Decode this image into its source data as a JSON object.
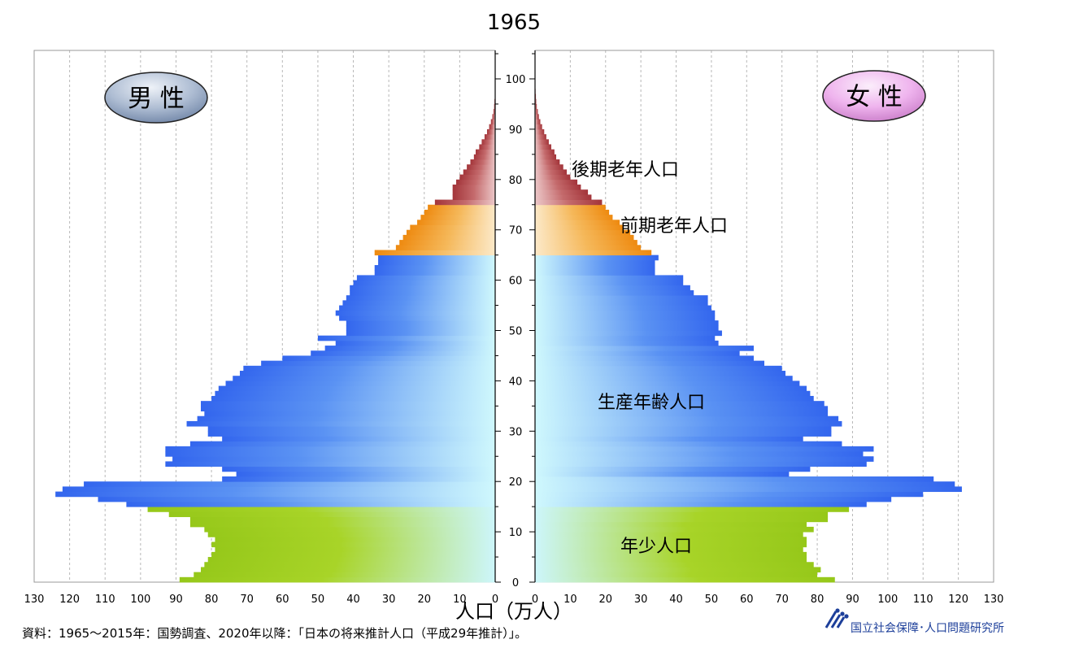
{
  "chart_data": {
    "type": "bar",
    "orientation": "horizontal",
    "subtype": "population-pyramid",
    "title": "1965",
    "xlabel": "人口（万人）",
    "unit": "万人",
    "xlim": [
      0,
      130
    ],
    "xticks": [
      0,
      10,
      20,
      30,
      40,
      50,
      60,
      70,
      80,
      90,
      100,
      110,
      120,
      130
    ],
    "ylim": [
      0,
      105
    ],
    "yticks": [
      0,
      10,
      20,
      30,
      40,
      50,
      60,
      70,
      80,
      90,
      100
    ],
    "grid": true,
    "male_label": "男 性",
    "female_label": "女 性",
    "age_groups": [
      {
        "name": "年少人口",
        "from": 0,
        "to": 14,
        "color": "#9ccc1e"
      },
      {
        "name": "生産年齢人口",
        "from": 15,
        "to": 64,
        "color": "#3a6ef0"
      },
      {
        "name": "前期老年人口",
        "from": 65,
        "to": 74,
        "color": "#f29418"
      },
      {
        "name": "後期老年人口",
        "from": 75,
        "to": 105,
        "color": "#a6383c"
      }
    ],
    "series": [
      {
        "name": "男 性",
        "values": [
          89,
          85,
          83,
          82,
          81,
          80,
          79,
          80,
          79,
          81,
          82,
          86,
          86,
          92,
          98,
          104,
          112,
          124,
          122,
          116,
          77,
          73,
          77,
          93,
          91,
          93,
          93,
          86,
          77,
          81,
          81,
          87,
          84,
          82,
          83,
          83,
          80,
          79,
          78,
          76,
          74,
          72,
          71,
          66,
          60,
          52,
          48,
          45,
          50,
          42,
          42,
          42,
          44,
          45,
          44,
          43,
          42,
          41,
          41,
          40,
          39,
          34,
          34,
          33,
          33,
          34,
          28,
          27,
          26,
          25,
          24,
          22,
          21,
          20,
          19,
          17,
          12,
          12,
          12,
          11,
          10,
          9,
          8,
          7,
          6,
          5.5,
          4.5,
          3.8,
          3.0,
          2.3,
          1.7,
          1.2,
          0.8,
          0.5,
          0.3,
          0.2,
          0.1,
          0.05,
          0.03,
          0.02,
          0.01,
          0,
          0,
          0,
          0,
          0
        ]
      },
      {
        "name": "女 性",
        "values": [
          85,
          80,
          81,
          79,
          77,
          77,
          76,
          77,
          77,
          76,
          79,
          77,
          83,
          83,
          89,
          94,
          101,
          110,
          121,
          119,
          113,
          72,
          78,
          94,
          96,
          93,
          96,
          87,
          76,
          84,
          84,
          87,
          86,
          83,
          83,
          82,
          79,
          78,
          77,
          75,
          73,
          71,
          70,
          65,
          62,
          58,
          62,
          52,
          51,
          53,
          52,
          52,
          51,
          51,
          50,
          49,
          49,
          45,
          44,
          42,
          42,
          34,
          34,
          34,
          35,
          33,
          30,
          29,
          28,
          27,
          25,
          24,
          22,
          21,
          20,
          19,
          16,
          15,
          13,
          12,
          10,
          9,
          8,
          7,
          6,
          5.5,
          4.6,
          3.9,
          3.2,
          2.6,
          2.0,
          1.5,
          1.1,
          0.8,
          0.5,
          0.35,
          0.25,
          0.15,
          0.1,
          0.06,
          0.03,
          0.02,
          0.01,
          0,
          0,
          0
        ]
      }
    ]
  },
  "source_note": "資料：1965～2015年：国勢調査、2020年以降：「日本の将来推計人口（平成29年推計）」。",
  "logo_text": "国立社会保障･人口問題研究所"
}
